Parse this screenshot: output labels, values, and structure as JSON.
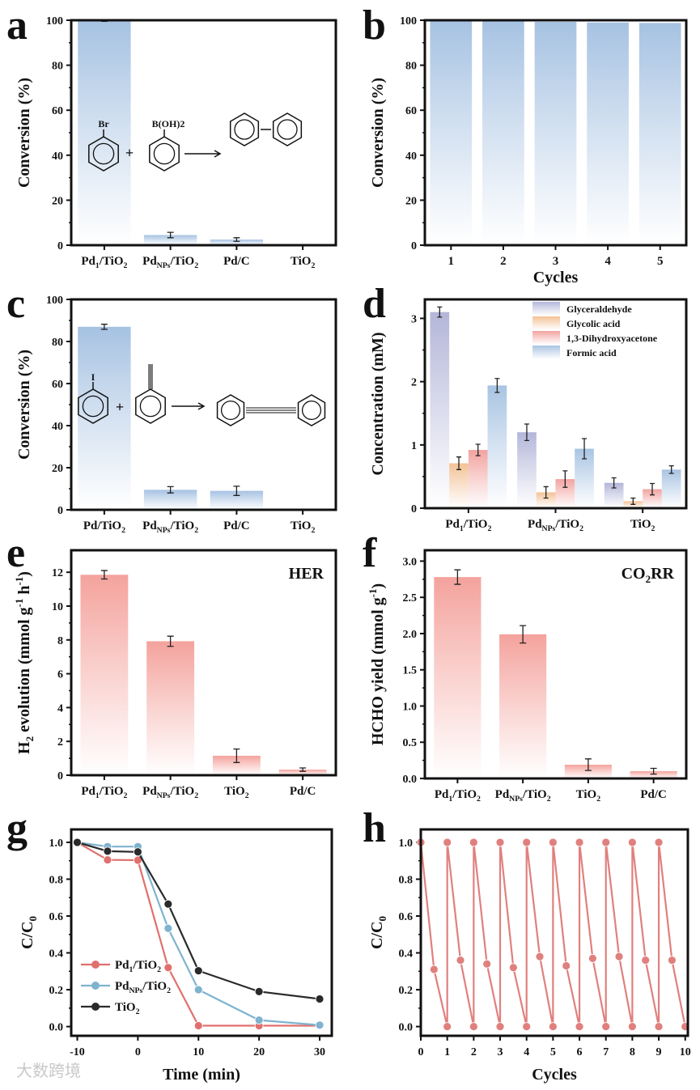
{
  "chart_data": [
    {
      "panel": "a",
      "type": "bar",
      "ylabel": "Conversion (%)",
      "xlabel": "",
      "ylim": [
        0,
        100
      ],
      "yticks": [
        0,
        20,
        40,
        60,
        80,
        100
      ],
      "categories": [
        "Pd1/TiO2",
        "PdNPs/TiO2",
        "Pd/C",
        "TiO2"
      ],
      "values": [
        99.8,
        4.5,
        2.5,
        0
      ],
      "errors": [
        0.3,
        1.2,
        0.8,
        0
      ],
      "scheme": {
        "reactant1_label": "Br",
        "reactant2_label": "B(OH)2",
        "plus": "+"
      }
    },
    {
      "panel": "b",
      "type": "bar",
      "ylabel": "Conversion (%)",
      "xlabel": "Cycles",
      "ylim": [
        0,
        100
      ],
      "yticks": [
        0,
        20,
        40,
        60,
        80,
        100
      ],
      "categories": [
        "1",
        "2",
        "3",
        "4",
        "5"
      ],
      "values": [
        99.8,
        99.6,
        99.3,
        99.0,
        98.8
      ]
    },
    {
      "panel": "c",
      "type": "bar",
      "ylabel": "Conversion (%)",
      "xlabel": "",
      "ylim": [
        0,
        100
      ],
      "yticks": [
        0,
        20,
        40,
        60,
        80,
        100
      ],
      "categories": [
        "Pd/TiO2",
        "PdNPs/TiO2",
        "Pd/C",
        "TiO2"
      ],
      "values": [
        87,
        9.5,
        9,
        0
      ],
      "errors": [
        1.2,
        1.5,
        2.2,
        0
      ],
      "scheme": {
        "reactant1_label": "I",
        "plus": "+"
      }
    },
    {
      "panel": "d",
      "type": "bar",
      "ylabel": "Concentration (mM)",
      "xlabel": "",
      "ylim": [
        0,
        3.3
      ],
      "yticks": [
        0,
        1,
        2,
        3
      ],
      "categories": [
        "Pd1/TiO2",
        "PdNPs/TiO2",
        "TiO2"
      ],
      "legend_position": "top-right",
      "series": [
        {
          "name": "Glyceraldehyde",
          "color": "#b3b6d9",
          "values": [
            3.1,
            1.2,
            0.4
          ],
          "errors": [
            0.08,
            0.13,
            0.08
          ]
        },
        {
          "name": "Glycolic acid",
          "color": "#f3c296",
          "values": [
            0.71,
            0.25,
            0.11
          ],
          "errors": [
            0.1,
            0.09,
            0.05
          ]
        },
        {
          "name": "1,3-Dihydroxyacetone",
          "color": "#f2a3a0",
          "values": [
            0.92,
            0.46,
            0.3
          ],
          "errors": [
            0.09,
            0.13,
            0.09
          ]
        },
        {
          "name": "Formic acid",
          "color": "#a8c4e2",
          "values": [
            1.94,
            0.94,
            0.61
          ],
          "errors": [
            0.11,
            0.16,
            0.06
          ]
        }
      ]
    },
    {
      "panel": "e",
      "type": "bar",
      "ylabel": "H2 evolution (mmol g-1 h-1)",
      "xlabel": "",
      "ylim": [
        0,
        13.3
      ],
      "yticks": [
        0,
        2,
        4,
        6,
        8,
        10,
        12
      ],
      "annotation": "HER",
      "categories": [
        "Pd1/TiO2",
        "PdNPs/TiO2",
        "TiO2",
        "Pd/C"
      ],
      "values": [
        11.85,
        7.92,
        1.15,
        0.33
      ],
      "errors": [
        0.25,
        0.3,
        0.4,
        0.1
      ]
    },
    {
      "panel": "f",
      "type": "bar",
      "ylabel": "HCHO yield (mmol g-1)",
      "xlabel": "",
      "ylim": [
        0,
        3.15
      ],
      "yticks": [
        0,
        0.5,
        1.0,
        1.5,
        2.0,
        2.5,
        3.0
      ],
      "annotation": "CO2RR",
      "categories": [
        "Pd1/TiO2",
        "PdNPs/TiO2",
        "TiO2",
        "Pd/C"
      ],
      "values": [
        2.78,
        1.99,
        0.19,
        0.1
      ],
      "errors": [
        0.1,
        0.12,
        0.08,
        0.04
      ]
    },
    {
      "panel": "g",
      "type": "line",
      "ylabel": "C/C0",
      "xlabel": "Time (min)",
      "xlim": [
        -11,
        32
      ],
      "ylim": [
        -0.05,
        1.07
      ],
      "xticks": [
        -10,
        0,
        10,
        20,
        30
      ],
      "yticks": [
        0.0,
        0.2,
        0.4,
        0.6,
        0.8,
        1.0
      ],
      "legend_position": "bottom-left",
      "x": [
        -10,
        -5,
        0,
        5,
        10,
        20,
        30
      ],
      "series": [
        {
          "name": "Pd1/TiO2",
          "color": "#e0706e",
          "values": [
            1.0,
            0.905,
            0.903,
            0.32,
            0.005,
            0.005,
            0.005
          ]
        },
        {
          "name": "PdNPs/TiO2",
          "color": "#7fb3cf",
          "values": [
            1.0,
            0.977,
            0.977,
            0.533,
            0.2,
            0.035,
            0.008
          ]
        },
        {
          "name": "TiO2",
          "color": "#2a2a2a",
          "values": [
            1.0,
            0.952,
            0.948,
            0.665,
            0.303,
            0.19,
            0.15
          ]
        }
      ]
    },
    {
      "panel": "h",
      "type": "line",
      "ylabel": "C/C0",
      "xlabel": "Cycles",
      "xlim": [
        0,
        10.1
      ],
      "ylim": [
        -0.05,
        1.07
      ],
      "xticks": [
        0,
        1,
        2,
        3,
        4,
        5,
        6,
        7,
        8,
        9,
        10
      ],
      "yticks": [
        0.0,
        0.2,
        0.4,
        0.6,
        0.8,
        1.0
      ],
      "series": [
        {
          "name": "Pd1/TiO2",
          "color": "#e0807e",
          "x": [
            0,
            0.5,
            1,
            1,
            1.5,
            2,
            2,
            2.5,
            3,
            3,
            3.5,
            4,
            4,
            4.5,
            5,
            5,
            5.5,
            6,
            6,
            6.5,
            7,
            7,
            7.5,
            8,
            8,
            8.5,
            9,
            9,
            9.5,
            10
          ],
          "values": [
            1.0,
            0.31,
            0.0,
            1.0,
            0.36,
            0.0,
            1.0,
            0.34,
            0.0,
            1.0,
            0.32,
            0.0,
            1.0,
            0.38,
            0.0,
            1.0,
            0.33,
            0.0,
            1.0,
            0.37,
            0.0,
            1.0,
            0.38,
            0.0,
            1.0,
            0.36,
            0.0,
            1.0,
            0.36,
            0.0
          ]
        }
      ]
    }
  ],
  "panel_letters": [
    "a",
    "b",
    "c",
    "d",
    "e",
    "f",
    "g",
    "h"
  ],
  "watermark": "大数跨境"
}
